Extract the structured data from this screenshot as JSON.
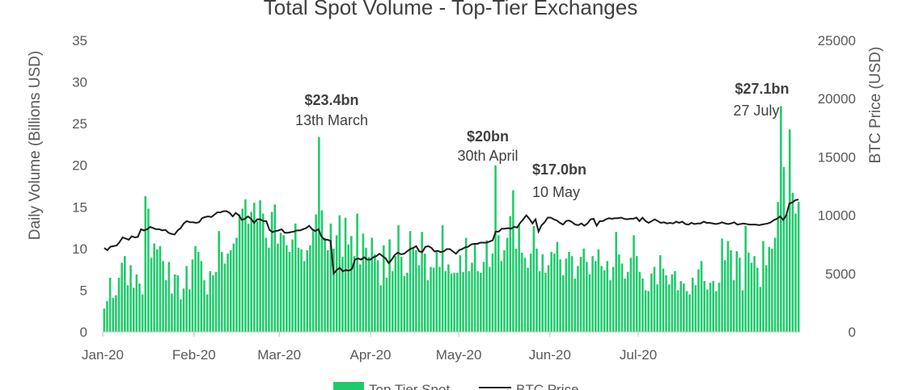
{
  "chart_data": {
    "type": "bar",
    "title": "Total Spot Volume - Top-Tier Exchanges",
    "ylabel": "Daily Volume (Billions USD)",
    "y2label": "BTC Price (USD)",
    "ylim": [
      0,
      35
    ],
    "y2lim": [
      0,
      25000
    ],
    "yticks": [
      "0",
      "5",
      "10",
      "15",
      "20",
      "25",
      "30",
      "35"
    ],
    "y2ticks": [
      "0",
      "5000",
      "10000",
      "15000",
      "20000",
      "25000"
    ],
    "xticks": [
      "Jan-20",
      "Feb-20",
      "Mar-20",
      "Apr-20",
      "May-20",
      "Jun-20",
      "Jul-20"
    ],
    "x_start": "2020-01-01",
    "x_end": "2020-07-29",
    "bar_color": "#1fca6b",
    "line_color": "#1a1a1a",
    "legend_position": "bottom",
    "series": [
      {
        "name": "Top Tier Spot",
        "type": "bar",
        "values": [
          2.8,
          3.7,
          6.5,
          4.1,
          4.4,
          6.5,
          8.3,
          9.1,
          5.6,
          8.0,
          5.3,
          6.9,
          5.8,
          4.5,
          16.3,
          14.8,
          8.9,
          10.6,
          9.9,
          10.3,
          8.5,
          6.2,
          8.4,
          4.6,
          6.9,
          6.8,
          3.9,
          5.2,
          7.9,
          5.1,
          8.7,
          10.3,
          9.6,
          8.5,
          6.2,
          4.5,
          7.3,
          6.8,
          7.2,
          12.1,
          9.6,
          8.2,
          9.4,
          9.8,
          10.6,
          11.3,
          14.1,
          14.8,
          15.9,
          13.0,
          14.4,
          15.5,
          13.3,
          15.8,
          14.2,
          11.3,
          10.1,
          14.4,
          15.3,
          10.6,
          11.9,
          11.6,
          10.4,
          9.6,
          11.1,
          13.0,
          10.1,
          9.9,
          8.5,
          9.8,
          10.4,
          12.2,
          14.1,
          23.4,
          14.6,
          11.3,
          9.8,
          13.0,
          10.0,
          11.6,
          14.0,
          9.0,
          13.7,
          10.5,
          11.5,
          9.1,
          14.2,
          8.1,
          11.8,
          10.1,
          9.0,
          11.3,
          9.3,
          8.6,
          5.6,
          10.4,
          6.5,
          11.1,
          7.3,
          9.1,
          12.8,
          9.0,
          6.7,
          7.1,
          12.1,
          10.1,
          9.8,
          8.0,
          12.0,
          9.4,
          6.2,
          7.8,
          7.7,
          9.6,
          7.8,
          12.8,
          7.3,
          8.1,
          7.0,
          7.1,
          7.1,
          9.2,
          7.2,
          11.3,
          7.3,
          8.3,
          10.6,
          7.3,
          7.1,
          8.4,
          11.0,
          7.8,
          9.4,
          20.0,
          11.6,
          8.5,
          9.8,
          11.3,
          13.9,
          17.0,
          10.0,
          12.9,
          9.5,
          8.9,
          7.7,
          9.4,
          12.7,
          10.0,
          7.3,
          9.3,
          7.1,
          8.0,
          9.6,
          9.4,
          10.8,
          8.7,
          6.8,
          8.8,
          9.6,
          9.1,
          6.4,
          7.9,
          9.0,
          10.0,
          8.4,
          6.9,
          9.1,
          8.5,
          9.9,
          7.9,
          7.4,
          8.5,
          6.2,
          7.8,
          12.0,
          9.3,
          8.2,
          6.4,
          7.2,
          8.9,
          11.6,
          9.1,
          7.2,
          6.4,
          5.0,
          4.9,
          7.0,
          7.8,
          5.7,
          9.2,
          7.6,
          6.8,
          5.7,
          6.9,
          7.3,
          5.0,
          6.1,
          5.8,
          4.9,
          4.5,
          6.5,
          5.6,
          7.5,
          8.5,
          6.1,
          5.1,
          5.9,
          6.1,
          4.9,
          5.9,
          11.2,
          8.6,
          10.9,
          9.8,
          6.2,
          9.7,
          8.9,
          5.0,
          12.7,
          9.5,
          8.3,
          9.1,
          7.7,
          5.4,
          10.9,
          8.0,
          10.2,
          10.0,
          11.3,
          15.6,
          27.1,
          19.8,
          14.1,
          24.3,
          16.7,
          14.2,
          15.6
        ]
      },
      {
        "name": "BTC Price",
        "type": "line",
        "axis": "right",
        "values": [
          7200,
          7000,
          7300,
          7350,
          7400,
          7700,
          8100,
          8000,
          7900,
          8200,
          8100,
          8150,
          8800,
          8700,
          8800,
          9000,
          8900,
          8800,
          8800,
          8700,
          8750,
          8500,
          8400,
          8350,
          8700,
          8900,
          9300,
          9500,
          9400,
          9400,
          9350,
          9400,
          9750,
          9850,
          9900,
          9850,
          10050,
          10250,
          10250,
          10350,
          10350,
          10200,
          9900,
          10200,
          10000,
          9600,
          9700,
          9900,
          9700,
          9350,
          9650,
          9650,
          9500,
          9500,
          8750,
          8550,
          8650,
          8700,
          8800,
          8500,
          8500,
          8550,
          8600,
          8700,
          8700,
          8800,
          8900,
          9100,
          8800,
          8650,
          8800,
          8200,
          7900,
          7900,
          7800,
          5000,
          5300,
          5500,
          5200,
          5300,
          5250,
          5400,
          6200,
          6300,
          6200,
          6400,
          6200,
          6200,
          6400,
          6500,
          6700,
          6500,
          6300,
          5900,
          6200,
          6600,
          6800,
          6650,
          6700,
          6900,
          7100,
          7200,
          7350,
          6900,
          6850,
          7300,
          7350,
          7200,
          6900,
          6950,
          6850,
          6900,
          7100,
          7100,
          6900,
          6700,
          7000,
          7100,
          7250,
          7300,
          7500,
          7550,
          7550,
          7650,
          7650,
          7650,
          7750,
          7850,
          8600,
          8600,
          8850,
          8850,
          8900,
          8850,
          9000,
          8950,
          9350,
          9650,
          10000,
          9700,
          9300,
          9650,
          8600,
          9150,
          9400,
          9800,
          9800,
          9650,
          9550,
          9350,
          9200,
          9500,
          9550,
          9400,
          9200,
          9150,
          9300,
          9100,
          9300,
          9650,
          9700,
          9100,
          9500,
          9500,
          9650,
          9750,
          9700,
          9750,
          9750,
          9800,
          9700,
          9650,
          9700,
          9700,
          9800,
          9500,
          9800,
          9500,
          9350,
          9500,
          9650,
          9500,
          9350,
          9400,
          9300,
          9350,
          9300,
          9450,
          9350,
          9450,
          9250,
          9200,
          9350,
          9250,
          9300,
          9300,
          9450,
          9350,
          9350,
          9300,
          9250,
          9300,
          9400,
          9300,
          9250,
          9300,
          9400,
          9200,
          9250,
          9300,
          9250,
          9200,
          9200,
          9200,
          9150,
          9200,
          9250,
          9300,
          9400,
          9600,
          9700,
          9900,
          9600,
          10000,
          11000,
          11100,
          11300,
          11350
        ]
      }
    ],
    "annotations": [
      {
        "value": "$23.4bn",
        "date": "13th March"
      },
      {
        "value": "$20bn",
        "date": "30th April"
      },
      {
        "value": "$17.0bn",
        "date": "10 May"
      },
      {
        "value": "$27.1bn",
        "date": "27 July"
      }
    ]
  }
}
